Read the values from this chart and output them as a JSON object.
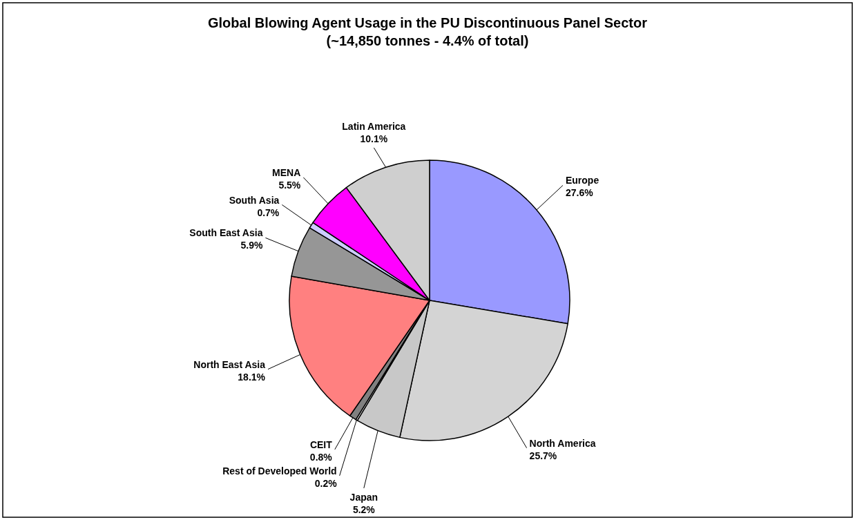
{
  "chart_data": {
    "type": "pie",
    "title": "Global Blowing Agent Usage in the PU Discontinuous Panel Sector",
    "subtitle": "(~14,850 tonnes - 4.4% of total)",
    "categories": [
      "Europe",
      "North America",
      "Japan",
      "Rest of Developed World",
      "CEIT",
      "North East Asia",
      "South East Asia",
      "South Asia",
      "MENA",
      "Latin America"
    ],
    "values": [
      27.6,
      25.7,
      5.2,
      0.2,
      0.8,
      18.1,
      5.9,
      0.7,
      5.5,
      10.1
    ],
    "value_labels": [
      "27.6%",
      "25.7%",
      "5.2%",
      "0.2%",
      "0.8%",
      "18.1%",
      "5.9%",
      "0.7%",
      "5.5%",
      "10.1%"
    ],
    "colors": [
      "#9999ff",
      "#d4d4d4",
      "#c8c8c8",
      "#ffffff",
      "#808080",
      "#ff8080",
      "#969696",
      "#ccccff",
      "#ff00ff",
      "#cfcfcf"
    ]
  }
}
